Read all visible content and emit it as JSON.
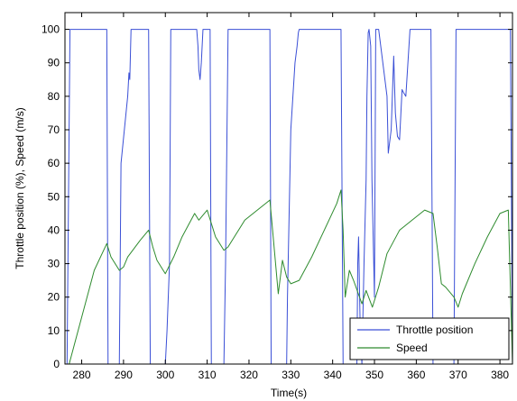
{
  "chart_data": {
    "type": "line",
    "xlabel": "Time(s)",
    "ylabel": "Throttle position (%), Speed (m/s)",
    "xlim": [
      276,
      383
    ],
    "ylim": [
      0,
      105
    ],
    "xticks": [
      280,
      290,
      300,
      310,
      320,
      330,
      340,
      350,
      360,
      370,
      380
    ],
    "yticks": [
      0,
      10,
      20,
      30,
      40,
      50,
      60,
      70,
      80,
      90,
      100
    ],
    "grid": false,
    "legend": "bottom-right",
    "series": [
      {
        "name": "Throttle position",
        "color": "#3a4fd6",
        "x": [
          276.5,
          277.2,
          278,
          286,
          286.3,
          289,
          289.4,
          291,
          291.3,
          291.5,
          291.8,
          292.3,
          296,
          296.4,
          300,
          300.4,
          301,
          301.3,
          307.5,
          307.8,
          308,
          308.3,
          308.6,
          309,
          310.7,
          311,
          314,
          314.4,
          315,
          325,
          325.3,
          329,
          329.2,
          330,
          331,
          331.5,
          331.8,
          332,
          342,
          342.5,
          345.8,
          346,
          346.2,
          346.6,
          347,
          347.5,
          348,
          348.2,
          348.5,
          348.7,
          349.1,
          349.4,
          350,
          350.3,
          351,
          353,
          353.3,
          354,
          354.6,
          355,
          355.5,
          356,
          356.6,
          357,
          357.5,
          358.5,
          359.2,
          360,
          363.5,
          364,
          369,
          369.5,
          370,
          382.5,
          383
        ],
        "y": [
          0,
          100,
          100,
          100,
          0,
          0,
          60,
          80,
          87,
          85,
          100,
          100,
          100,
          0,
          0,
          10,
          30,
          100,
          100,
          95,
          88,
          85,
          90,
          100,
          100,
          0,
          0,
          30,
          100,
          100,
          0,
          0,
          20,
          70,
          90,
          95,
          99,
          100,
          100,
          0,
          0,
          30,
          38,
          10,
          0,
          30,
          55,
          80,
          99,
          100,
          95,
          55,
          20,
          100,
          100,
          80,
          63,
          70,
          92,
          75,
          68,
          67,
          82,
          81,
          80,
          100,
          100,
          100,
          100,
          0,
          0,
          100,
          100,
          100,
          0
        ]
      },
      {
        "name": "Speed",
        "color": "#2e8b2e",
        "x": [
          277,
          280,
          283,
          286,
          287,
          289,
          290,
          291,
          294,
          296,
          297,
          298,
          300,
          302,
          304,
          307,
          308,
          310,
          311,
          312,
          314,
          315,
          317,
          319,
          322,
          325,
          326,
          327,
          328,
          329,
          330,
          332,
          335,
          338,
          341,
          342,
          342.5,
          343,
          344,
          345,
          347,
          348,
          349.5,
          351,
          353,
          356,
          359,
          362,
          364,
          365,
          366,
          367,
          369,
          370,
          371,
          374,
          377,
          380,
          382,
          383
        ],
        "y": [
          0,
          14,
          28,
          36,
          32,
          28,
          29,
          32,
          37,
          40,
          35,
          31,
          27,
          32,
          38,
          45,
          43,
          46,
          42,
          38,
          34,
          35,
          39,
          43,
          46,
          49,
          35,
          21,
          31,
          26,
          24,
          25,
          32,
          40,
          48,
          52,
          40,
          20,
          28,
          25,
          18,
          22,
          17,
          23,
          33,
          40,
          43,
          46,
          45,
          35,
          24,
          23,
          20,
          17,
          21,
          30,
          38,
          45,
          46,
          0
        ]
      }
    ]
  }
}
